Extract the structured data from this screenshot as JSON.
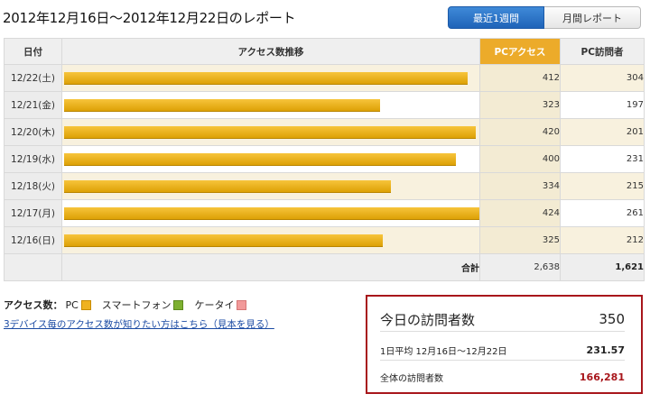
{
  "page": {
    "title": "2012年12月16日～2012年12月22日のレポート"
  },
  "tabs": [
    {
      "label": "最近1週間",
      "active": true
    },
    {
      "label": "月間レポート",
      "active": false
    }
  ],
  "table": {
    "headers": {
      "date": "日付",
      "trend": "アクセス数推移",
      "pc": "PCアクセス",
      "visitors": "PC訪問者"
    },
    "rows": [
      {
        "date": "12/22(土)",
        "pc": 412,
        "visitors": 304
      },
      {
        "date": "12/21(金)",
        "pc": 323,
        "visitors": 197
      },
      {
        "date": "12/20(木)",
        "pc": 420,
        "visitors": 201
      },
      {
        "date": "12/19(水)",
        "pc": 400,
        "visitors": 231
      },
      {
        "date": "12/18(火)",
        "pc": 334,
        "visitors": 215
      },
      {
        "date": "12/17(月)",
        "pc": 424,
        "visitors": 261
      },
      {
        "date": "12/16(日)",
        "pc": 325,
        "visitors": 212
      }
    ],
    "total": {
      "label": "合計",
      "pc": "2,638",
      "visitors": "1,621"
    }
  },
  "legend": {
    "label": "アクセス数：",
    "items": [
      {
        "label": "PC",
        "color": "#efb220"
      },
      {
        "label": "スマートフォン",
        "color": "#7db030"
      },
      {
        "label": "ケータイ",
        "color": "#f29a9a"
      }
    ]
  },
  "link": {
    "text": "3デバイス毎のアクセス数が知りたい方はこちら（見本を見る）"
  },
  "stats": {
    "today_label": "今日の訪問者数",
    "today_value": "350",
    "average_label": "1日平均 12月16日～12月22日",
    "average_value": "231.57",
    "total_label": "全体の訪問者数",
    "total_value": "166,281"
  },
  "colors": {
    "accent_blue": "#2a72c8",
    "bar_orange": "#efb220",
    "total_red": "#a8161b"
  }
}
